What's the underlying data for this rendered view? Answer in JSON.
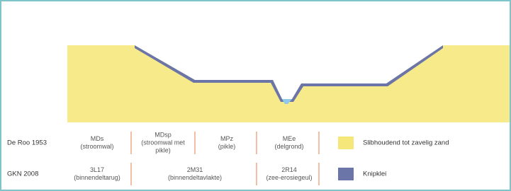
{
  "rows": [
    {
      "label": "De Roo 1953",
      "cells": [
        {
          "lines": [
            "MDs",
            "(stroomwal)"
          ]
        },
        {
          "lines": [
            "MDsp",
            "(stroomwal met",
            "pikle)"
          ]
        },
        {
          "lines": [
            "MPz",
            "(pikle)"
          ]
        },
        {
          "lines": [
            "MEe",
            "(delgrond)"
          ]
        }
      ]
    },
    {
      "label": "GKN 2008",
      "cells": [
        {
          "lines": [
            "3L17",
            "(binnendeltarug)"
          ]
        },
        {
          "lines": [
            "2M31",
            "(binnendeltavlakte)"
          ]
        },
        {
          "lines": [
            "2R14",
            "(zee-erosiegeul)"
          ]
        }
      ]
    }
  ],
  "legend": [
    {
      "label": "Slibhoudend tot zavelig zand",
      "color": "#f5e77a"
    },
    {
      "label": "Knipklei",
      "color": "#6c75a8"
    }
  ]
}
